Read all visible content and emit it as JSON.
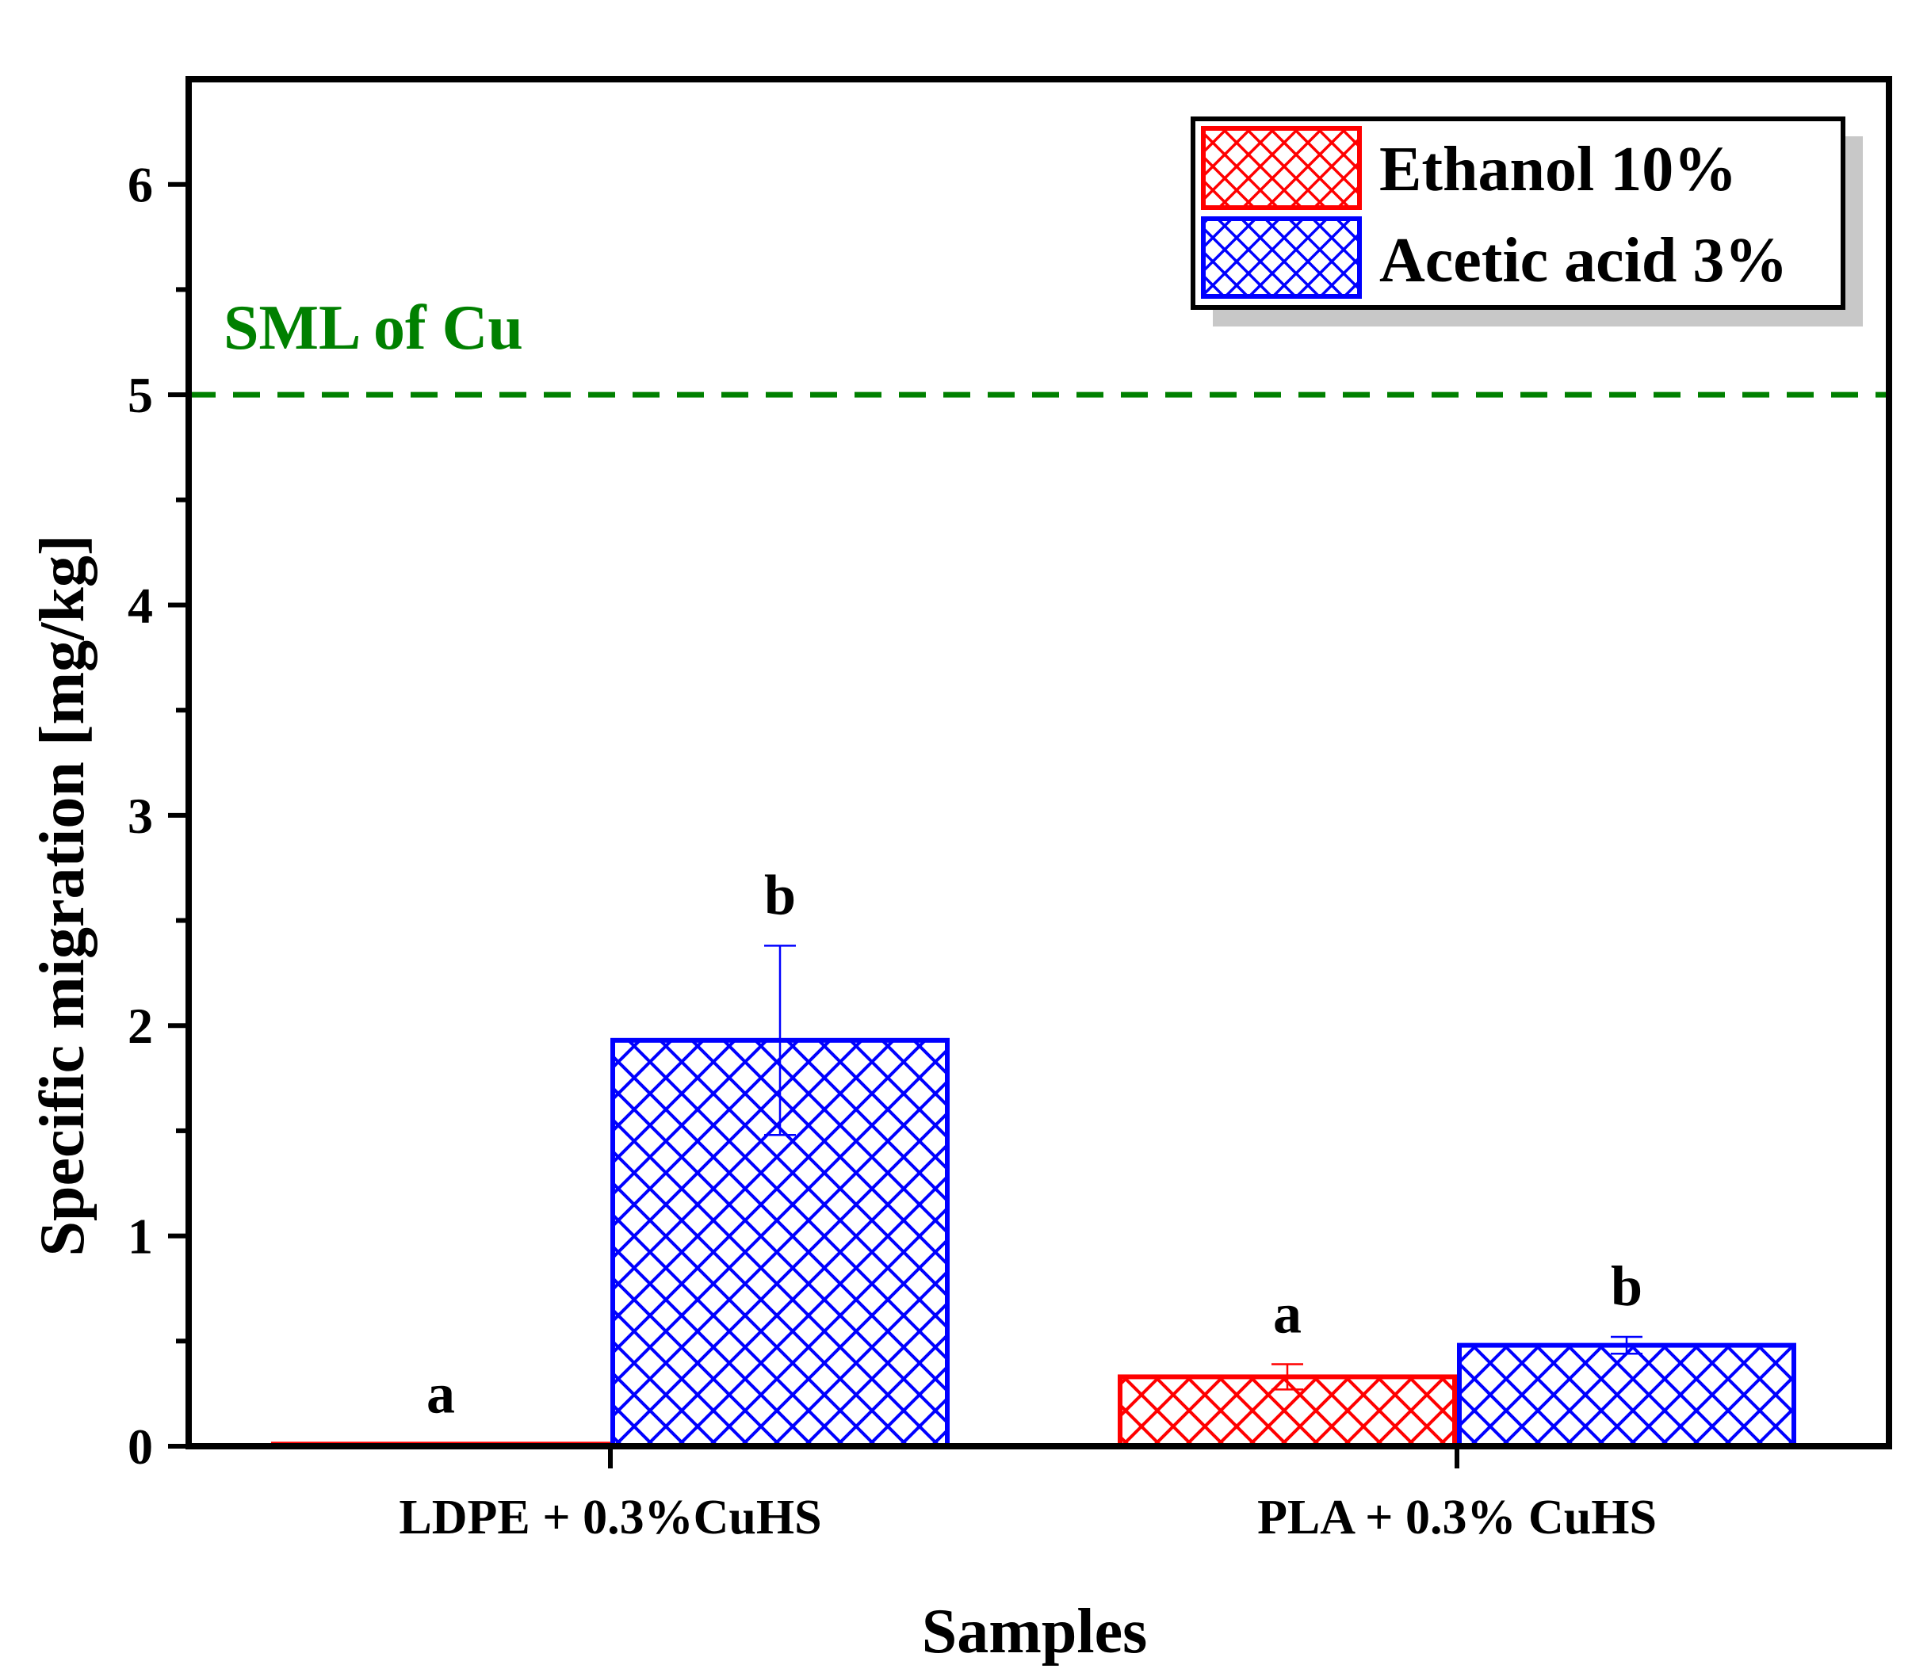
{
  "chart_data": {
    "type": "bar",
    "categories": [
      "LDPE + 0.3%CuHS",
      "PLA + 0.3% CuHS"
    ],
    "series": [
      {
        "name": "Ethanol 10%",
        "color": "#ff0000",
        "values": [
          0.01,
          0.33
        ],
        "errors": [
          0.0,
          0.06
        ],
        "sig_labels": [
          "a",
          "a"
        ]
      },
      {
        "name": "Acetic acid 3%",
        "color": "#0000ff",
        "values": [
          1.93,
          0.48
        ],
        "errors": [
          0.45,
          0.04
        ],
        "sig_labels": [
          "b",
          "b"
        ]
      }
    ],
    "xlabel": "Samples",
    "ylabel": "Specific migration [mg/kg]",
    "ylim": [
      0,
      6.5
    ],
    "yticks": [
      "0",
      "1",
      "2",
      "3",
      "4",
      "5",
      "6"
    ],
    "reference_line": {
      "label": "SML of Cu",
      "value": 5,
      "color": "#008000"
    },
    "legend_position": "top-right",
    "pattern": "crosshatch",
    "grid": false
  }
}
